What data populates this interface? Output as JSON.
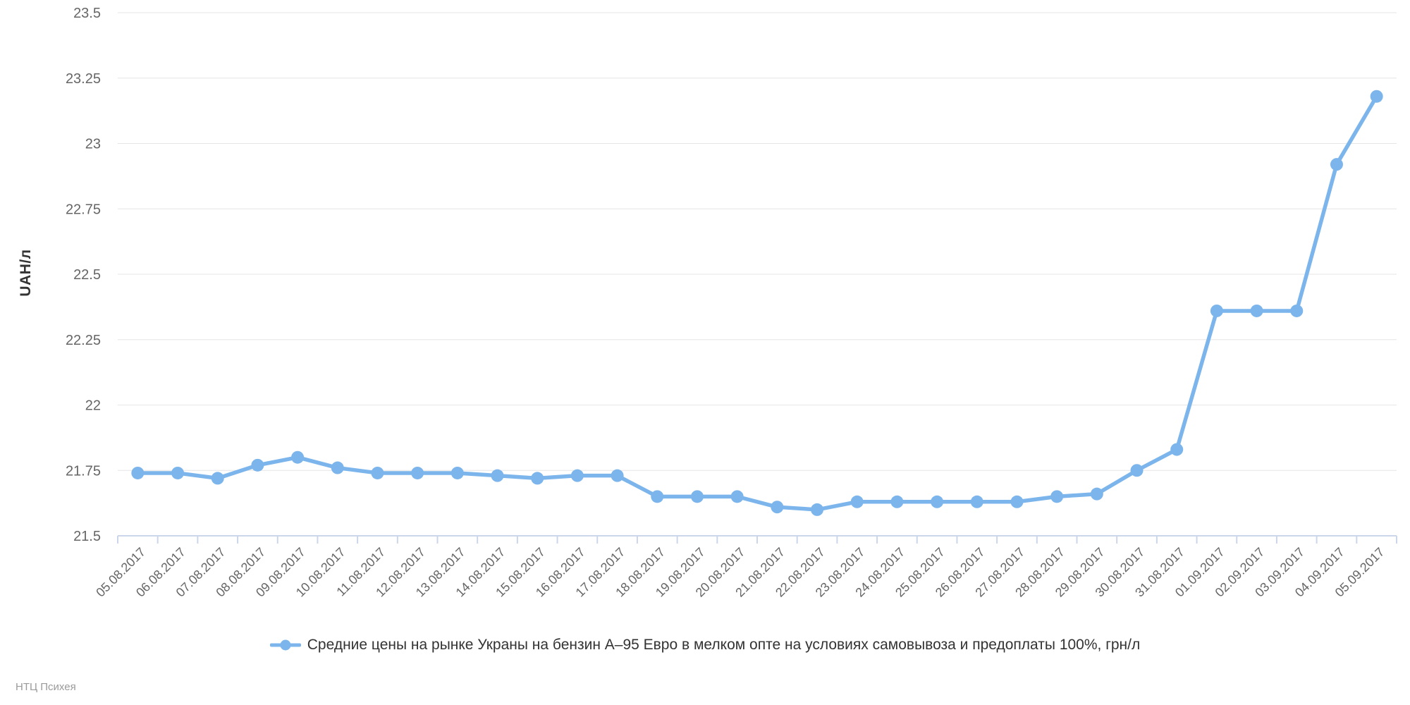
{
  "chart": {
    "colors": {
      "series": "#7cb5ec",
      "grid": "#e6e6e6",
      "axis_line": "#ccd6eb",
      "tick_label": "#666666",
      "y_axis_label": "#666666",
      "legend_text": "#333333",
      "y_title": "#333333",
      "watermark": "#9a9a9a"
    },
    "watermark": "НТЦ Психея"
  },
  "chart_data": {
    "type": "line",
    "title": "",
    "xlabel": "",
    "ylabel": "UAH/л",
    "ylim": [
      21.5,
      23.5
    ],
    "ytick_step": 0.25,
    "ytick_labels": [
      "21.5",
      "21.75",
      "22",
      "22.25",
      "22.5",
      "22.75",
      "23",
      "23.25",
      "23.5"
    ],
    "grid": true,
    "legend_position": "bottom",
    "categories": [
      "05.08.2017",
      "06.08.2017",
      "07.08.2017",
      "08.08.2017",
      "09.08.2017",
      "10.08.2017",
      "11.08.2017",
      "12.08.2017",
      "13.08.2017",
      "14.08.2017",
      "15.08.2017",
      "16.08.2017",
      "17.08.2017",
      "18.08.2017",
      "19.08.2017",
      "20.08.2017",
      "21.08.2017",
      "22.08.2017",
      "23.08.2017",
      "24.08.2017",
      "25.08.2017",
      "26.08.2017",
      "27.08.2017",
      "28.08.2017",
      "29.08.2017",
      "30.08.2017",
      "31.08.2017",
      "01.09.2017",
      "02.09.2017",
      "03.09.2017",
      "04.09.2017",
      "05.09.2017"
    ],
    "series": [
      {
        "name": "Средние цены на рынке Украны на бензин А–95 Евро в мелком опте на условиях самовывоза и предоплаты 100%, грн/л",
        "color": "#7cb5ec",
        "values": [
          21.74,
          21.74,
          21.72,
          21.77,
          21.8,
          21.76,
          21.74,
          21.74,
          21.74,
          21.73,
          21.72,
          21.73,
          21.73,
          21.65,
          21.65,
          21.65,
          21.61,
          21.6,
          21.63,
          21.63,
          21.63,
          21.63,
          21.63,
          21.65,
          21.66,
          21.75,
          21.83,
          22.36,
          22.36,
          22.36,
          22.92,
          23.18
        ]
      }
    ]
  }
}
